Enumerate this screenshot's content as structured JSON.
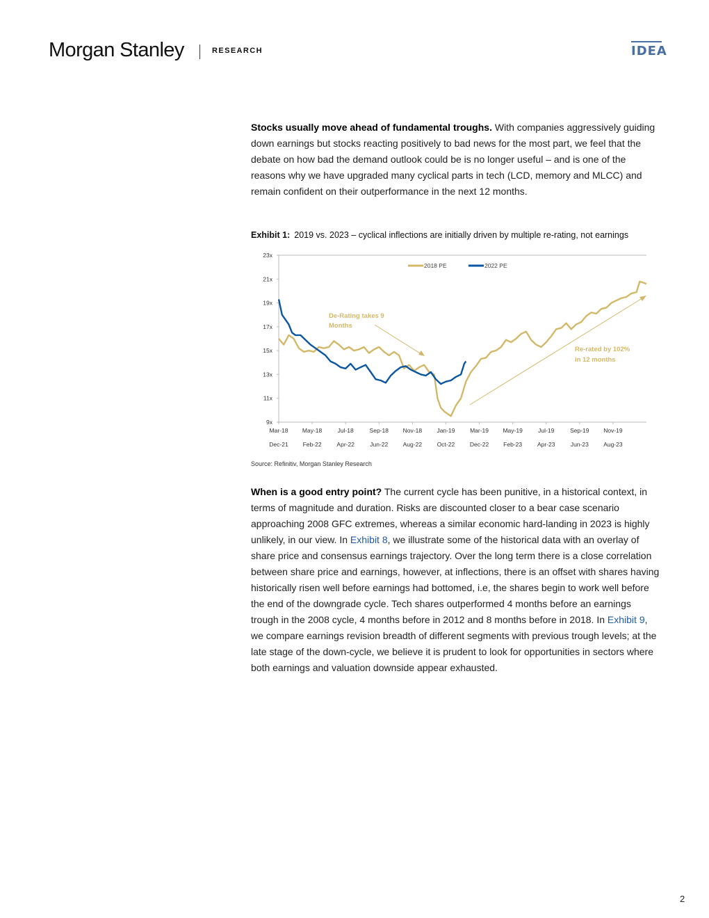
{
  "header": {
    "brand": "Morgan Stanley",
    "section": "RESEARCH",
    "badge": "IDEA"
  },
  "para1": {
    "lead": "Stocks usually move ahead of fundamental troughs.",
    "body": " With companies aggressively guiding down earnings but stocks reacting positively to bad news for the most part, we feel that the debate on how bad the demand outlook could be is no longer useful – and is one of the reasons why we have upgraded many cyclical parts in tech (LCD, memory and MLCC) and remain confident on their outperformance in the next 12 months."
  },
  "exhibit": {
    "label": "Exhibit 1:",
    "title": "2019 vs. 2023 – cyclical inflections are initially driven by multiple re-rating, not earnings",
    "source": "Source: Refinitiv, Morgan Stanley Research"
  },
  "chart_data": {
    "type": "line",
    "title": "",
    "ylim": [
      9,
      23
    ],
    "yticks": [
      "23x",
      "21x",
      "19x",
      "17x",
      "15x",
      "13x",
      "11x",
      "9x"
    ],
    "ytick_values": [
      23,
      21,
      19,
      17,
      15,
      13,
      11,
      9
    ],
    "xticks_top": [
      "Mar-18",
      "May-18",
      "Jul-18",
      "Sep-18",
      "Nov-18",
      "Jan-19",
      "Mar-19",
      "May-19",
      "Jul-19",
      "Sep-19",
      "Nov-19"
    ],
    "xticks_bottom": [
      "Dec-21",
      "Feb-22",
      "Apr-22",
      "Jun-22",
      "Aug-22",
      "Oct-22",
      "Dec-22",
      "Feb-23",
      "Apr-23",
      "Jun-23",
      "Aug-23"
    ],
    "legend": {
      "position": "top-center",
      "items": [
        "2018 PE",
        "2022 PE"
      ]
    },
    "colors": {
      "2018 PE": "#d4b86a",
      "2022 PE": "#0b56a0",
      "axis": "#bbbbbb",
      "annotation": "#d4b86a"
    },
    "series": [
      {
        "name": "2018 PE",
        "x_months": [
          0,
          0.3,
          0.6,
          0.9,
          1.2,
          1.5,
          1.8,
          2.1,
          2.4,
          2.7,
          3.0,
          3.3,
          3.6,
          3.9,
          4.2,
          4.5,
          4.8,
          5.1,
          5.4,
          5.7,
          6.0,
          6.3,
          6.6,
          6.9,
          7.2,
          7.5,
          7.8,
          8.1,
          8.4,
          8.7,
          9.0,
          9.3,
          9.5,
          9.7,
          9.9,
          10.1,
          10.3,
          10.6,
          10.9,
          11.2,
          11.5,
          11.8,
          12.1,
          12.4,
          12.7,
          13.0,
          13.3,
          13.6,
          13.9,
          14.2,
          14.5,
          14.8,
          15.1,
          15.4,
          15.7,
          16.0,
          16.3,
          16.6,
          16.9,
          17.2,
          17.5,
          17.8,
          18.1,
          18.4,
          18.7,
          19.0,
          19.3,
          19.6,
          19.9,
          20.2,
          20.5,
          20.8,
          21.1,
          21.4,
          21.6,
          21.8,
          22.0
        ],
        "values": [
          16.0,
          15.5,
          16.3,
          16.0,
          15.2,
          14.9,
          15.0,
          14.9,
          15.3,
          15.2,
          15.3,
          15.8,
          15.5,
          15.1,
          15.3,
          15.0,
          15.1,
          15.3,
          14.8,
          15.1,
          15.3,
          14.9,
          14.6,
          14.9,
          14.6,
          13.5,
          13.8,
          13.3,
          13.6,
          13.8,
          13.2,
          13.0,
          11.0,
          10.2,
          9.9,
          9.7,
          9.5,
          10.4,
          11.0,
          12.4,
          13.2,
          13.7,
          14.3,
          14.4,
          14.9,
          15.0,
          15.3,
          15.9,
          15.7,
          16.0,
          16.4,
          16.6,
          15.9,
          15.5,
          15.3,
          15.7,
          16.2,
          16.8,
          16.9,
          17.3,
          16.8,
          17.2,
          17.4,
          17.9,
          18.2,
          18.1,
          18.5,
          18.6,
          19.0,
          19.2,
          19.4,
          19.5,
          19.8,
          19.9,
          20.8,
          20.7,
          20.6
        ]
      },
      {
        "name": "2022 PE",
        "x_months": [
          0,
          0.2,
          0.4,
          0.6,
          0.8,
          1.0,
          1.3,
          1.6,
          1.9,
          2.2,
          2.5,
          2.8,
          3.1,
          3.4,
          3.7,
          4.0,
          4.3,
          4.6,
          4.9,
          5.2,
          5.5,
          5.8,
          6.1,
          6.4,
          6.7,
          7.0,
          7.3,
          7.6,
          7.9,
          8.2,
          8.5,
          8.8,
          9.1,
          9.4,
          9.7,
          10.0,
          10.3,
          10.6,
          10.9,
          11.1,
          11.2
        ],
        "values": [
          19.3,
          18.0,
          17.6,
          17.2,
          16.5,
          16.3,
          16.3,
          15.9,
          15.5,
          15.2,
          14.9,
          14.6,
          14.1,
          13.9,
          13.6,
          13.5,
          13.9,
          13.4,
          13.6,
          13.8,
          13.2,
          12.6,
          12.5,
          12.3,
          12.9,
          13.3,
          13.6,
          13.7,
          13.4,
          13.2,
          13.0,
          12.9,
          13.2,
          12.6,
          12.2,
          12.4,
          12.5,
          12.8,
          13.0,
          13.9,
          14.1
        ]
      }
    ],
    "annotations": [
      {
        "text": "De-Rating takes 9 Months"
      },
      {
        "text": "Re-rated by 102% in 12 months"
      }
    ]
  },
  "para2": {
    "lead": "When is a good entry point?",
    "part1": " The current cycle has been punitive, in a historical context, in terms of magnitude and duration. Risks are discounted closer to a bear case scenario approaching 2008 GFC extremes, whereas a similar economic hard-landing in 2023 is highly unlikely, in our view. In ",
    "link1": "Exhibit 8",
    "part2": ", we illustrate some of the historical data with an overlay of share price and consensus earnings trajectory. Over the long term there is a close correlation between share price and earnings, however, at inflections, there is an offset with shares having historically risen well before earnings had bottomed, i.e, the shares begin to work well before the end of the downgrade cycle. Tech shares outperformed 4 months before an earnings trough in the 2008 cycle, 4 months before in 2012 and 8 months before in 2018. In ",
    "link2": "Exhibit 9",
    "part3": ", we compare earnings revision breadth of different segments with previous trough levels; at the late stage of the down-cycle, we believe it is prudent to look for opportunities in sectors where both earnings and valuation downside appear exhausted."
  },
  "page_number": "2"
}
